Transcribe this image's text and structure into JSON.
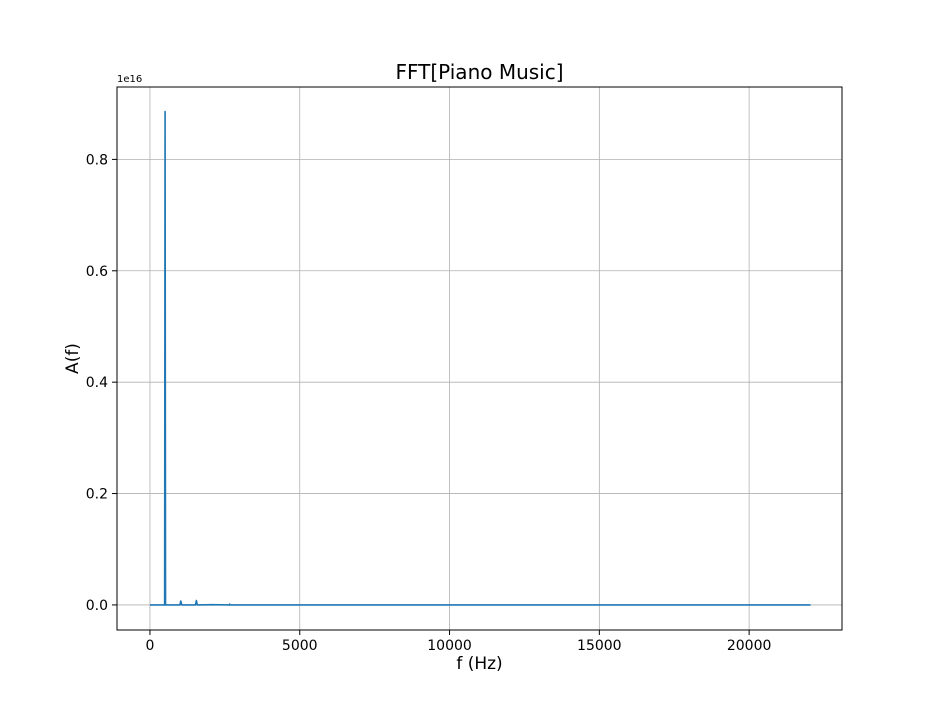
{
  "chart_data": {
    "type": "line",
    "title": "FFT[Piano Music]",
    "xlabel": "f (Hz)",
    "ylabel": "A(f)",
    "y_offset_label": "1e16",
    "y_scale": 1e+16,
    "xlim": [
      -1100,
      23100
    ],
    "ylim": [
      -0.045,
      0.93
    ],
    "xticks": [
      {
        "value": 0,
        "label": "0"
      },
      {
        "value": 5000,
        "label": "5000"
      },
      {
        "value": 10000,
        "label": "10000"
      },
      {
        "value": 15000,
        "label": "15000"
      },
      {
        "value": 20000,
        "label": "20000"
      }
    ],
    "yticks": [
      {
        "value": 0.0,
        "label": "0.0"
      },
      {
        "value": 0.2,
        "label": "0.2"
      },
      {
        "value": 0.4,
        "label": "0.4"
      },
      {
        "value": 0.6,
        "label": "0.6"
      },
      {
        "value": 0.8,
        "label": "0.8"
      }
    ],
    "grid": true,
    "line_color": "#1f77b4",
    "series": [
      {
        "x": [
          0,
          470,
          490,
          505,
          520,
          540,
          560,
          1000,
          1030,
          1060,
          1520,
          1550,
          1580,
          2100,
          2650,
          2660,
          2680,
          3000,
          5000,
          10000,
          15000,
          20000,
          22050
        ],
        "y": [
          0.0,
          0.0,
          0.0,
          0.886,
          0.0,
          0.0,
          0.0,
          0.0,
          0.007,
          0.0,
          0.0,
          0.008,
          0.0,
          0.0005,
          0.0,
          0.0015,
          0.0,
          0.0,
          0.0,
          0.0,
          0.0,
          0.0,
          0.0
        ]
      }
    ]
  }
}
